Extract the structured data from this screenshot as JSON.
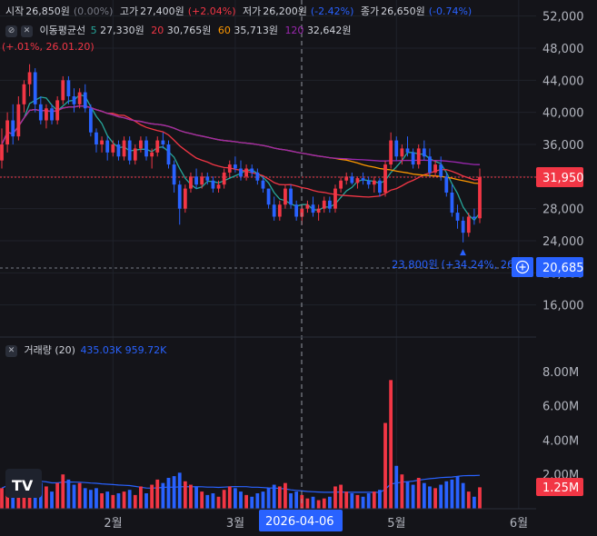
{
  "ohlc_legend": {
    "open_label": "시작",
    "open_value": "26,850원",
    "open_pct": "(0.00%)",
    "high_label": "고가",
    "high_value": "27,400원",
    "high_pct": "(+2.04%)",
    "low_label": "저가",
    "low_value": "26,200원",
    "low_pct": "(-2.42%)",
    "close_label": "종가",
    "close_value": "26,650원",
    "close_pct": "(-0.74%)"
  },
  "ma_legend": {
    "title": "이동평균선",
    "items": [
      {
        "period": "5",
        "value": "27,330원",
        "color": "#26a69a"
      },
      {
        "period": "20",
        "value": "30,765원",
        "color": "#f23645"
      },
      {
        "period": "60",
        "value": "35,713원",
        "color": "#ff9800"
      },
      {
        "period": "120",
        "value": "32,642원",
        "color": "#9c27b0"
      }
    ]
  },
  "max_annotation_partial": "(+.01%, 26.01.20)",
  "min_annotation": "23,800원 (+34.24%, 26.0",
  "volume_legend": {
    "title": "거래량 (20)",
    "v1": "435.03K",
    "v2": "959.72K"
  },
  "crosshair_date": "2026-04-06",
  "price_axis": {
    "ticks": [
      "52,000",
      "48,000",
      "44,000",
      "40,000",
      "36,000",
      "32,000",
      "28,000",
      "24,000",
      "20,000",
      "16,000"
    ]
  },
  "volume_axis": {
    "ticks": [
      "8.00M",
      "6.00M",
      "4.00M",
      "2.00M"
    ]
  },
  "time_axis": {
    "ticks": [
      "2월",
      "3월",
      "5월",
      "6월"
    ]
  },
  "badges": {
    "last_price": "31,950",
    "crosshair_price": "20,685",
    "last_volume": "1.25M"
  },
  "colors": {
    "up": "#f23645",
    "down": "#2962ff",
    "background": "#141419"
  },
  "chart_data": {
    "type": "candlestick",
    "y_range": [
      12000,
      54000
    ],
    "volume_range": [
      0,
      9000000
    ],
    "candles": [
      [
        34000,
        38000,
        33000,
        36000,
        1200000
      ],
      [
        36000,
        40000,
        35000,
        39000,
        1500000
      ],
      [
        39000,
        41000,
        36000,
        37000,
        1300000
      ],
      [
        37000,
        42000,
        36500,
        41000,
        1400000
      ],
      [
        41000,
        44000,
        40000,
        43500,
        1800000
      ],
      [
        43500,
        46000,
        42000,
        45000,
        2200000
      ],
      [
        45000,
        45500,
        40000,
        41000,
        1900000
      ],
      [
        41000,
        42000,
        38500,
        39000,
        1500000
      ],
      [
        39000,
        41000,
        38000,
        40500,
        1300000
      ],
      [
        40500,
        41000,
        38500,
        39000,
        1000000
      ],
      [
        39000,
        42000,
        38500,
        41500,
        1500000
      ],
      [
        41500,
        44500,
        41000,
        44000,
        2000000
      ],
      [
        44000,
        44500,
        41000,
        42000,
        1700000
      ],
      [
        42000,
        43000,
        40000,
        41000,
        1400000
      ],
      [
        41000,
        43000,
        40500,
        42500,
        1500000
      ],
      [
        42500,
        43500,
        40000,
        40500,
        1200000
      ],
      [
        40500,
        41000,
        37000,
        37500,
        1100000
      ],
      [
        37500,
        38000,
        35000,
        36000,
        1200000
      ],
      [
        36000,
        37000,
        35000,
        36500,
        900000
      ],
      [
        36500,
        37000,
        34000,
        35000,
        1000000
      ],
      [
        35000,
        36500,
        34500,
        36000,
        800000
      ],
      [
        36000,
        36500,
        34000,
        34500,
        900000
      ],
      [
        34500,
        37000,
        34000,
        36500,
        1000000
      ],
      [
        36500,
        37000,
        33500,
        34000,
        1100000
      ],
      [
        34000,
        36000,
        33500,
        35500,
        800000
      ],
      [
        35500,
        37000,
        35000,
        36500,
        1300000
      ],
      [
        36500,
        37000,
        34000,
        34500,
        900000
      ],
      [
        34500,
        35500,
        33000,
        35000,
        1400000
      ],
      [
        35000,
        37000,
        34500,
        36500,
        1700000
      ],
      [
        36500,
        37500,
        35500,
        36000,
        1500000
      ],
      [
        36000,
        36500,
        33000,
        33500,
        1800000
      ],
      [
        33500,
        34000,
        30000,
        31000,
        1900000
      ],
      [
        31000,
        31500,
        26000,
        28000,
        2100000
      ],
      [
        28000,
        31000,
        27500,
        30500,
        1600000
      ],
      [
        30500,
        32500,
        30000,
        32000,
        1400000
      ],
      [
        32000,
        33000,
        30500,
        31000,
        1300000
      ],
      [
        31000,
        32500,
        30500,
        32000,
        1000000
      ],
      [
        32000,
        32500,
        31000,
        31500,
        800000
      ],
      [
        31500,
        32000,
        30000,
        30500,
        900000
      ],
      [
        30500,
        31500,
        30000,
        31000,
        700000
      ],
      [
        31000,
        33000,
        30500,
        32500,
        1100000
      ],
      [
        32500,
        34000,
        32000,
        33500,
        1300000
      ],
      [
        33500,
        34500,
        32500,
        33000,
        1200000
      ],
      [
        33000,
        34000,
        31500,
        32000,
        1000000
      ],
      [
        32000,
        33500,
        31500,
        33000,
        800000
      ],
      [
        33000,
        33500,
        32000,
        32500,
        700000
      ],
      [
        32500,
        33000,
        31000,
        31500,
        900000
      ],
      [
        31500,
        32000,
        30000,
        30500,
        1000000
      ],
      [
        30500,
        30500,
        28000,
        28500,
        1200000
      ],
      [
        28500,
        29500,
        26500,
        27000,
        1400000
      ],
      [
        27000,
        29000,
        26500,
        28500,
        1300000
      ],
      [
        28500,
        31000,
        28000,
        30500,
        1500000
      ],
      [
        30500,
        31000,
        28000,
        28500,
        900000
      ],
      [
        28500,
        29000,
        26500,
        27000,
        1000000
      ],
      [
        27000,
        28500,
        26000,
        28000,
        800000
      ],
      [
        28000,
        29000,
        27500,
        28500,
        600000
      ],
      [
        28500,
        29500,
        27000,
        27500,
        700000
      ],
      [
        27500,
        28500,
        26500,
        28000,
        500000
      ],
      [
        28000,
        29500,
        27500,
        29000,
        600000
      ],
      [
        29000,
        29500,
        27500,
        28000,
        700000
      ],
      [
        28000,
        31000,
        27500,
        30500,
        1300000
      ],
      [
        30500,
        32000,
        30000,
        31500,
        1400000
      ],
      [
        31500,
        32500,
        31000,
        32000,
        1000000
      ],
      [
        32000,
        32500,
        31000,
        31200,
        900000
      ],
      [
        31200,
        32000,
        30500,
        31800,
        800000
      ],
      [
        31800,
        32500,
        31000,
        31500,
        700000
      ],
      [
        31500,
        32000,
        30500,
        31000,
        900000
      ],
      [
        31000,
        32000,
        30000,
        31500,
        1000000
      ],
      [
        31500,
        31800,
        29500,
        30000,
        1100000
      ],
      [
        30000,
        34000,
        29500,
        33500,
        5000000
      ],
      [
        33500,
        37500,
        33000,
        36500,
        7500000
      ],
      [
        36500,
        37000,
        34000,
        34500,
        2500000
      ],
      [
        34500,
        36000,
        33500,
        35500,
        2000000
      ],
      [
        35500,
        37000,
        34500,
        35000,
        1600000
      ],
      [
        35000,
        35500,
        33000,
        33500,
        1400000
      ],
      [
        33500,
        36000,
        33000,
        35500,
        1800000
      ],
      [
        35500,
        36500,
        34000,
        34500,
        1500000
      ],
      [
        34500,
        35500,
        32000,
        32500,
        1300000
      ],
      [
        32500,
        34000,
        32000,
        33500,
        1200000
      ],
      [
        33500,
        34500,
        31500,
        32000,
        1400000
      ],
      [
        32000,
        32500,
        29500,
        30000,
        1600000
      ],
      [
        30000,
        31000,
        27000,
        27500,
        1700000
      ],
      [
        27500,
        28500,
        25500,
        26500,
        1900000
      ],
      [
        26500,
        27000,
        23800,
        25000,
        1500000
      ],
      [
        25000,
        27500,
        24500,
        27000,
        1000000
      ],
      [
        27000,
        28000,
        26000,
        26800,
        700000
      ],
      [
        26800,
        33000,
        26200,
        31950,
        1250000
      ]
    ]
  }
}
